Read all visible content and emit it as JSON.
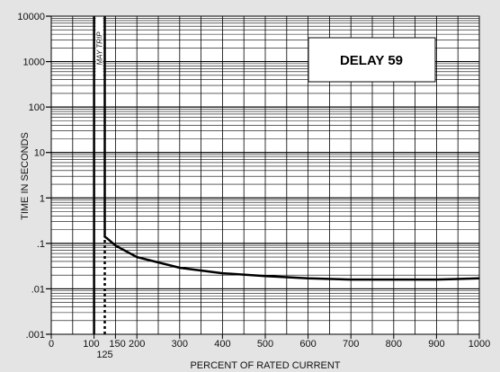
{
  "chart_data": {
    "type": "line",
    "title": "",
    "xlabel": "PERCENT OF RATED CURRENT",
    "ylabel": "TIME IN SECONDS",
    "xlim": [
      0,
      1000
    ],
    "ylim": [
      0.001,
      10000
    ],
    "yscale": "log",
    "grid": true,
    "x_tick_labels": [
      {
        "value": 0,
        "label": "0"
      },
      {
        "value": 100,
        "label": "100"
      },
      {
        "value": 150,
        "label": "150"
      },
      {
        "value": 200,
        "label": "200"
      },
      {
        "value": 300,
        "label": "300"
      },
      {
        "value": 400,
        "label": "400"
      },
      {
        "value": 500,
        "label": "500"
      },
      {
        "value": 600,
        "label": "600"
      },
      {
        "value": 700,
        "label": "700"
      },
      {
        "value": 800,
        "label": "800"
      },
      {
        "value": 900,
        "label": "900"
      },
      {
        "value": 1000,
        "label": "1000"
      }
    ],
    "x_extra_tick_label": {
      "value": 125,
      "label": "125"
    },
    "y_tick_labels": [
      {
        "value": 10000,
        "label": "10000"
      },
      {
        "value": 1000,
        "label": "1000"
      },
      {
        "value": 100,
        "label": "100"
      },
      {
        "value": 10,
        "label": "10"
      },
      {
        "value": 1,
        "label": "1"
      },
      {
        "value": 0.1,
        "label": ".1"
      },
      {
        "value": 0.01,
        "label": ".01"
      },
      {
        "value": 0.001,
        "label": ".001"
      }
    ],
    "series": [
      {
        "x": [
          125,
          125,
          130,
          150,
          200,
          300,
          400,
          500,
          600,
          700,
          800,
          900,
          1000
        ],
        "y": [
          10000,
          0.14,
          0.13,
          0.09,
          0.05,
          0.029,
          0.022,
          0.019,
          0.017,
          0.016,
          0.016,
          0.016,
          0.017
        ]
      }
    ],
    "reference_lines": [
      {
        "x": 100,
        "style": "solid"
      },
      {
        "x": 125,
        "style": "dotted",
        "y_from": 0.001,
        "y_to": 0.14
      }
    ],
    "annotations": [
      {
        "text": "MAY TRIP",
        "x": 125
      },
      {
        "text": "DELAY 59"
      }
    ]
  }
}
